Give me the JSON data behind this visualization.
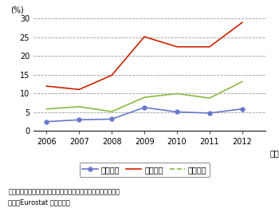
{
  "years": [
    2006,
    2007,
    2008,
    2009,
    2010,
    2011,
    2012
  ],
  "muuki": [
    2.5,
    3.0,
    3.2,
    6.3,
    5.1,
    4.8,
    5.9
  ],
  "yuuki": [
    12.0,
    11.1,
    14.9,
    25.2,
    22.5,
    22.5,
    29.0
  ],
  "hiro": [
    5.9,
    6.5,
    5.2,
    9.0,
    10.0,
    8.8,
    13.2
  ],
  "muuki_color": "#6677cc",
  "yuuki_color": "#cc2200",
  "hiro_color": "#88bb44",
  "ylabel": "(%)",
  "ylim": [
    0,
    30
  ],
  "yticks": [
    0,
    5,
    10,
    15,
    20,
    25,
    30
  ],
  "legend_muuki": "無期雇用",
  "legend_yuuki": "有期雇用",
  "legend_hiro": "非労働力",
  "note1": "備考：前年の雇用形態別人数に占める、当年の失業者の割合。",
  "note2": "資料：Eurostat から作成。",
  "bg_color": "#ffffff",
  "grid_color": "#999999",
  "tick_fontsize": 7,
  "note_fontsize": 6.0,
  "legend_fontsize": 7
}
